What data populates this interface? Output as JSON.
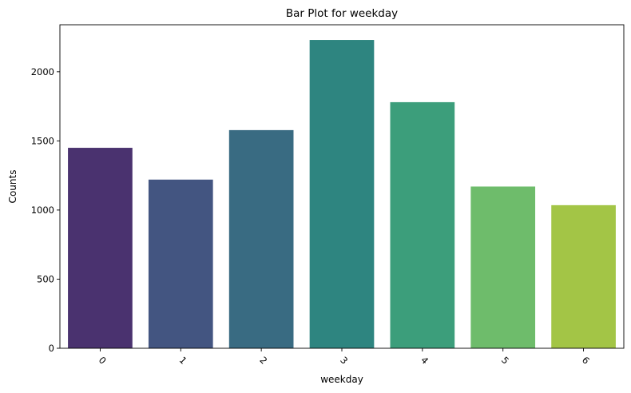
{
  "chart_data": {
    "type": "bar",
    "title": "Bar Plot for weekday",
    "xlabel": "weekday",
    "ylabel": "Counts",
    "categories": [
      "0",
      "1",
      "2",
      "3",
      "4",
      "5",
      "6"
    ],
    "values": [
      1450,
      1220,
      1578,
      2230,
      1780,
      1170,
      1035
    ],
    "colors": [
      "#4a326f",
      "#435581",
      "#396b82",
      "#2e8580",
      "#3c9e7b",
      "#6ebc6b",
      "#a3c546"
    ],
    "yticks": [
      0,
      500,
      1000,
      1500,
      2000
    ],
    "ylim": [
      0,
      2340
    ],
    "grid": false,
    "xtick_rotation": 45
  }
}
